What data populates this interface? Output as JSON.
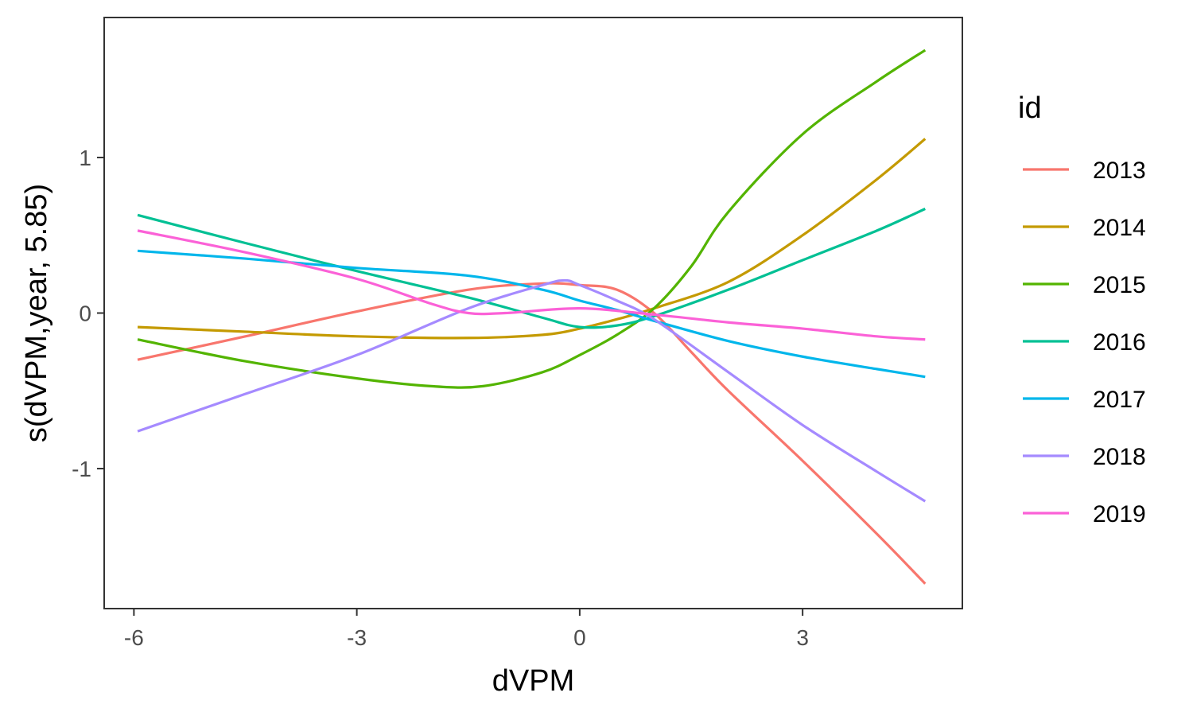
{
  "chart_data": {
    "type": "line",
    "xlabel": "dVPM",
    "ylabel": "s(dVPM,year, 5.85)",
    "xlim": [
      -6.4,
      5.15
    ],
    "ylim": [
      -1.9,
      1.9
    ],
    "xticks": [
      {
        "value": -6,
        "label": "-6"
      },
      {
        "value": -3,
        "label": "-3"
      },
      {
        "value": 0,
        "label": "0"
      },
      {
        "value": 3,
        "label": "3"
      }
    ],
    "yticks": [
      {
        "value": -1,
        "label": "-1"
      },
      {
        "value": 0,
        "label": "0"
      },
      {
        "value": 1,
        "label": "1"
      }
    ],
    "grid": false,
    "legend": {
      "title": "id",
      "position": "right"
    },
    "series": [
      {
        "name": "2013",
        "color": "#F8766D",
        "x": [
          -5.95,
          -4.5,
          -3,
          -1.5,
          -0.5,
          0,
          0.5,
          1.0,
          1.5,
          2.0,
          3.0,
          4.0,
          4.65
        ],
        "y": [
          -0.3,
          -0.15,
          0.01,
          0.15,
          0.19,
          0.18,
          0.15,
          0.0,
          -0.25,
          -0.5,
          -0.95,
          -1.42,
          -1.74
        ]
      },
      {
        "name": "2014",
        "color": "#C49A00",
        "x": [
          -5.95,
          -4.5,
          -3,
          -1.5,
          -0.5,
          0,
          0.5,
          1.0,
          2.0,
          3.0,
          4.0,
          4.65
        ],
        "y": [
          -0.09,
          -0.12,
          -0.15,
          -0.16,
          -0.14,
          -0.1,
          -0.04,
          0.03,
          0.2,
          0.5,
          0.86,
          1.12
        ]
      },
      {
        "name": "2015",
        "color": "#53B400",
        "x": [
          -5.95,
          -4.5,
          -3,
          -2,
          -1.3,
          -0.5,
          0,
          0.5,
          1.0,
          1.5,
          2.0,
          3.0,
          4.0,
          4.65
        ],
        "y": [
          -0.17,
          -0.31,
          -0.42,
          -0.47,
          -0.47,
          -0.38,
          -0.27,
          -0.14,
          0.03,
          0.3,
          0.65,
          1.15,
          1.49,
          1.69
        ]
      },
      {
        "name": "2016",
        "color": "#00C094",
        "x": [
          -5.95,
          -4.5,
          -3,
          -1.5,
          -0.5,
          0,
          0.5,
          1.0,
          2.0,
          3.0,
          4.0,
          4.65
        ],
        "y": [
          0.63,
          0.45,
          0.27,
          0.1,
          -0.03,
          -0.09,
          -0.08,
          -0.02,
          0.15,
          0.34,
          0.53,
          0.67
        ]
      },
      {
        "name": "2017",
        "color": "#00B6EB",
        "x": [
          -5.95,
          -4.5,
          -3,
          -1.5,
          -0.5,
          0,
          0.5,
          1.0,
          2.0,
          3.0,
          4.0,
          4.65
        ],
        "y": [
          0.4,
          0.35,
          0.29,
          0.24,
          0.15,
          0.08,
          0.02,
          -0.05,
          -0.18,
          -0.28,
          -0.36,
          -0.41
        ]
      },
      {
        "name": "2018",
        "color": "#A58AFF",
        "x": [
          -5.95,
          -4.5,
          -3,
          -1.5,
          -0.5,
          -0.2,
          0,
          0.5,
          1.0,
          2.0,
          3.0,
          4.0,
          4.65
        ],
        "y": [
          -0.76,
          -0.52,
          -0.27,
          0.03,
          0.18,
          0.21,
          0.18,
          0.08,
          -0.04,
          -0.38,
          -0.72,
          -1.02,
          -1.21
        ]
      },
      {
        "name": "2019",
        "color": "#FB61D7",
        "x": [
          -5.95,
          -4.5,
          -3,
          -2,
          -1.5,
          -1,
          0,
          1.0,
          2.0,
          3.0,
          4.0,
          4.65
        ],
        "y": [
          0.53,
          0.39,
          0.22,
          0.06,
          0.0,
          0.0,
          0.03,
          -0.01,
          -0.06,
          -0.1,
          -0.15,
          -0.17
        ]
      }
    ]
  }
}
